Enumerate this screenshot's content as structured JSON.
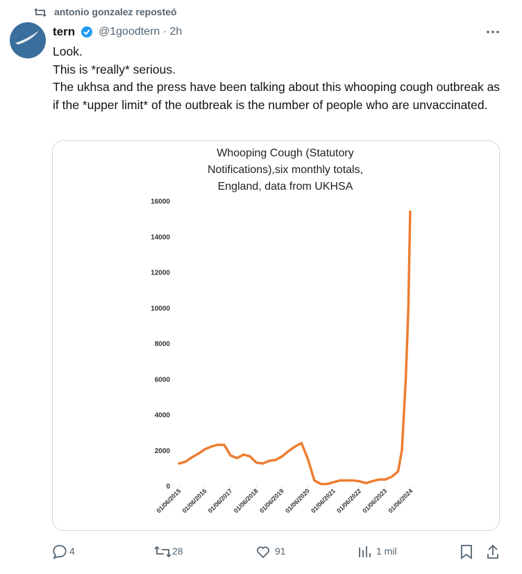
{
  "repost": "antonio gonzalez reposteó",
  "author": {
    "name": "tern",
    "meta": "@1goodtern · 2h"
  },
  "text": [
    "Look.",
    "This is *really* serious.",
    "The ukhsa and the press have been talking about this whooping cough outbreak as if the *upper limit* of the outbreak is the number of people who are unvaccinated."
  ],
  "actions": {
    "replies": 4,
    "reposts": 28,
    "likes": 91,
    "views": "1 mil"
  },
  "chart_data": {
    "type": "line",
    "title": "Whooping Cough (Statutory Notifications),six monthly totals, England, data from UKHSA",
    "color": "#ed7d31",
    "x": [
      2015.0,
      2015.25,
      2015.5,
      2015.75,
      2016.0,
      2016.25,
      2016.5,
      2016.75,
      2017.0,
      2017.25,
      2017.5,
      2017.75,
      2018.0,
      2018.25,
      2018.5,
      2018.75,
      2019.0,
      2019.25,
      2019.5,
      2019.75,
      2020.0,
      2020.25,
      2020.5,
      2020.75,
      2021.0,
      2021.25,
      2021.5,
      2021.75,
      2022.0,
      2022.25,
      2022.5,
      2022.75,
      2023.0,
      2023.25,
      2023.5,
      2023.65,
      2023.8,
      2023.9,
      2023.97
    ],
    "values": [
      1250,
      1350,
      1600,
      1800,
      2050,
      2200,
      2300,
      2300,
      1700,
      1550,
      1750,
      1650,
      1300,
      1250,
      1400,
      1450,
      1650,
      1950,
      2200,
      2400,
      1500,
      300,
      100,
      100,
      200,
      300,
      300,
      300,
      250,
      150,
      250,
      350,
      350,
      500,
      800,
      2000,
      6000,
      10000,
      15400
    ],
    "xlim": [
      2015,
      2024
    ],
    "xticks": [
      {
        "value": 2015,
        "label": "01/06/2015"
      },
      {
        "value": 2016,
        "label": "01/06/2016"
      },
      {
        "value": 2017,
        "label": "01/06/2017"
      },
      {
        "value": 2018,
        "label": "01/06/2018"
      },
      {
        "value": 2019,
        "label": "01/06/2019"
      },
      {
        "value": 2020,
        "label": "01/06/2020"
      },
      {
        "value": 2021,
        "label": "01/06/2021"
      },
      {
        "value": 2022,
        "label": "01/06/2022"
      },
      {
        "value": 2023,
        "label": "01/06/2023"
      },
      {
        "value": 2024,
        "label": "01/06/2024"
      }
    ],
    "ylim": [
      0,
      16000
    ],
    "yticks": [
      0,
      2000,
      4000,
      6000,
      8000,
      10000,
      12000,
      14000,
      16000
    ]
  }
}
